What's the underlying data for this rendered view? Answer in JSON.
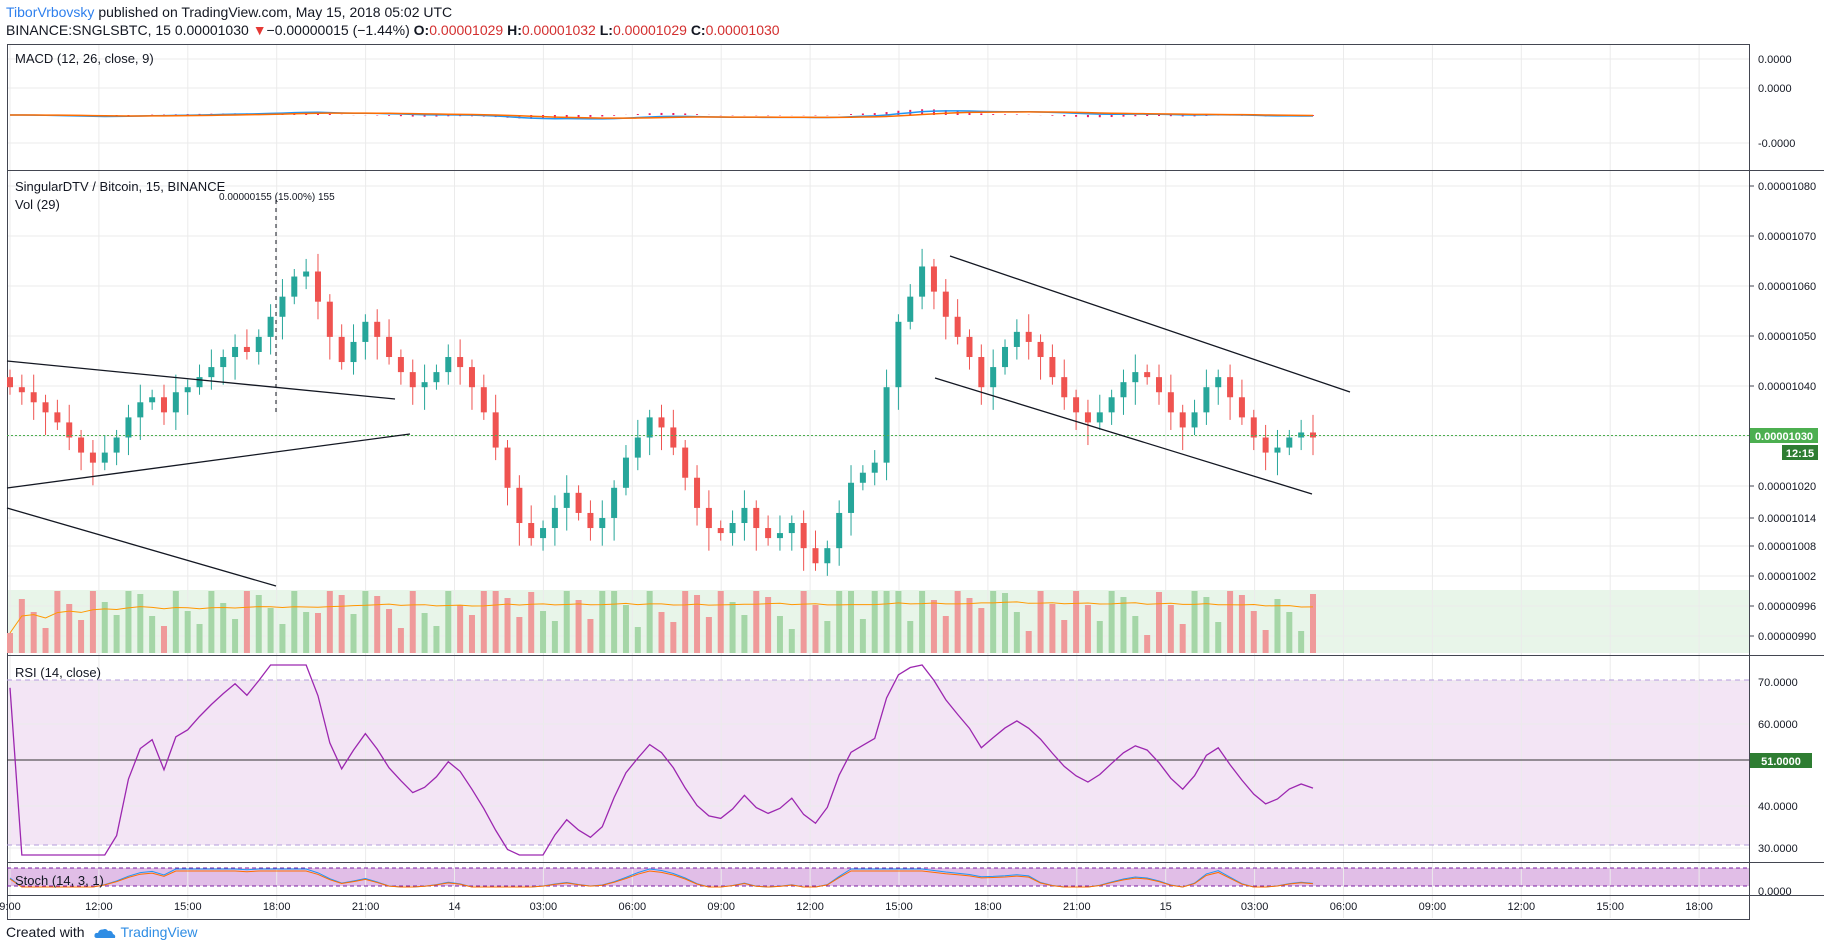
{
  "header": {
    "author": "TiborVrbovsky",
    "published_text": "published on TradingView.com, May 15, 2018 05:02 UTC",
    "symbol": "BINANCE:SNGLSBTC, 15",
    "last": "0.00001030",
    "change_arrow": "▼",
    "change": "−0.00000015 (−1.44%)",
    "o_label": "O:",
    "o_value": "0.00001029",
    "h_label": "H:",
    "h_value": "0.00001032",
    "l_label": "L:",
    "l_value": "0.00001029",
    "c_label": "C:",
    "c_value": "0.00001030"
  },
  "panes": {
    "macd_title": "MACD (12, 26, close, 9)",
    "price_title": "SingularDTV / Bitcoin, 15, BINANCE",
    "vol_title": "Vol (29)",
    "measure_label": "0.00000155 (15.00%) 155",
    "rsi_title": "RSI (14, close)",
    "stoch_title": "Stoch (14, 3, 1)"
  },
  "macd_axis": [
    "0.0000",
    "0.0000",
    "-0.0000"
  ],
  "price_axis": [
    "0.00001080",
    "0.00001070",
    "0.00001060",
    "0.00001050",
    "0.00001040",
    "0.00001030",
    "0.00001020",
    "0.00001014",
    "0.00001008",
    "0.00001002",
    "0.00000996",
    "0.00000990"
  ],
  "price_badge": "0.00001030",
  "time_badge": "12:15",
  "rsi_axis": [
    "70.0000",
    "60.0000",
    "51.0000",
    "40.0000",
    "30.0000"
  ],
  "stoch_axis": [
    "0.0000"
  ],
  "time_axis": [
    "9:00",
    "12:00",
    "15:00",
    "18:00",
    "21:00",
    "14",
    "03:00",
    "06:00",
    "09:00",
    "12:00",
    "15:00",
    "18:00",
    "21:00",
    "15",
    "03:00",
    "06:00",
    "09:00",
    "12:00",
    "15:00",
    "18:00"
  ],
  "footer": {
    "created_with": "Created with",
    "brand": "TradingView"
  },
  "colors": {
    "up": "#26a69a",
    "down": "#ef5350",
    "up_vol": "#a5d6a7",
    "down_vol": "#ef9a9a",
    "macd_line": "#2196f3",
    "signal_line": "#ff6d00",
    "hist": "#e91e63",
    "rsi_line": "#9c27b0",
    "rsi_band": "#f3e5f5",
    "vol_band": "#e8f5e9",
    "last_price": "#4caf50",
    "grid": "#ebebeb"
  },
  "chart_data": {
    "type": "candlestick",
    "symbol": "BINANCE:SNGLSBTC",
    "interval": "15",
    "note_indicators": [
      "MACD (12, 26, close, 9)",
      "Vol (29)",
      "RSI (14, close)",
      "Stoch (14, 3, 1)"
    ],
    "price_levels": [
      1.08e-05,
      1.07e-05,
      1.06e-05,
      1.05e-05,
      1.04e-05,
      1.03e-05,
      1.02e-05,
      1.014e-05,
      1.008e-05,
      1.002e-05,
      9.96e-06,
      9.9e-06
    ],
    "last_price": 1.03e-05,
    "rsi_levels": [
      70,
      60,
      51,
      40,
      30
    ],
    "rsi_current": 51,
    "closes": [
      1.04e-05,
      1.039e-05,
      1.037e-05,
      1.035e-05,
      1.033e-05,
      1.03e-05,
      1.027e-05,
      1.025e-05,
      1.027e-05,
      1.03e-05,
      1.034e-05,
      1.037e-05,
      1.038e-05,
      1.035e-05,
      1.039e-05,
      1.04e-05,
      1.042e-05,
      1.044e-05,
      1.046e-05,
      1.048e-05,
      1.047e-05,
      1.05e-05,
      1.054e-05,
      1.058e-05,
      1.062e-05,
      1.063e-05,
      1.057e-05,
      1.05e-05,
      1.045e-05,
      1.049e-05,
      1.053e-05,
      1.05e-05,
      1.046e-05,
      1.043e-05,
      1.04e-05,
      1.041e-05,
      1.043e-05,
      1.046e-05,
      1.044e-05,
      1.04e-05,
      1.035e-05,
      1.028e-05,
      1.02e-05,
      1.013e-05,
      1.01e-05,
      1.012e-05,
      1.016e-05,
      1.019e-05,
      1.015e-05,
      1.012e-05,
      1.014e-05,
      1.02e-05,
      1.026e-05,
      1.03e-05,
      1.034e-05,
      1.032e-05,
      1.028e-05,
      1.022e-05,
      1.016e-05,
      1.012e-05,
      1.011e-05,
      1.013e-05,
      1.016e-05,
      1.012e-05,
      1.01e-05,
      1.011e-05,
      1.013e-05,
      1.008e-05,
      1.005e-05,
      1.008e-05,
      1.015e-05,
      1.021e-05,
      1.023e-05,
      1.025e-05,
      1.04e-05,
      1.053e-05,
      1.058e-05,
      1.064e-05,
      1.059e-05,
      1.054e-05,
      1.05e-05,
      1.046e-05,
      1.04e-05,
      1.044e-05,
      1.048e-05,
      1.051e-05,
      1.049e-05,
      1.046e-05,
      1.042e-05,
      1.038e-05,
      1.035e-05,
      1.033e-05,
      1.035e-05,
      1.038e-05,
      1.041e-05,
      1.043e-05,
      1.042e-05,
      1.039e-05,
      1.035e-05,
      1.032e-05,
      1.035e-05,
      1.04e-05,
      1.042e-05,
      1.038e-05,
      1.034e-05,
      1.03e-05,
      1.027e-05,
      1.028e-05,
      1.03e-05,
      1.031e-05,
      1.03e-05
    ]
  }
}
